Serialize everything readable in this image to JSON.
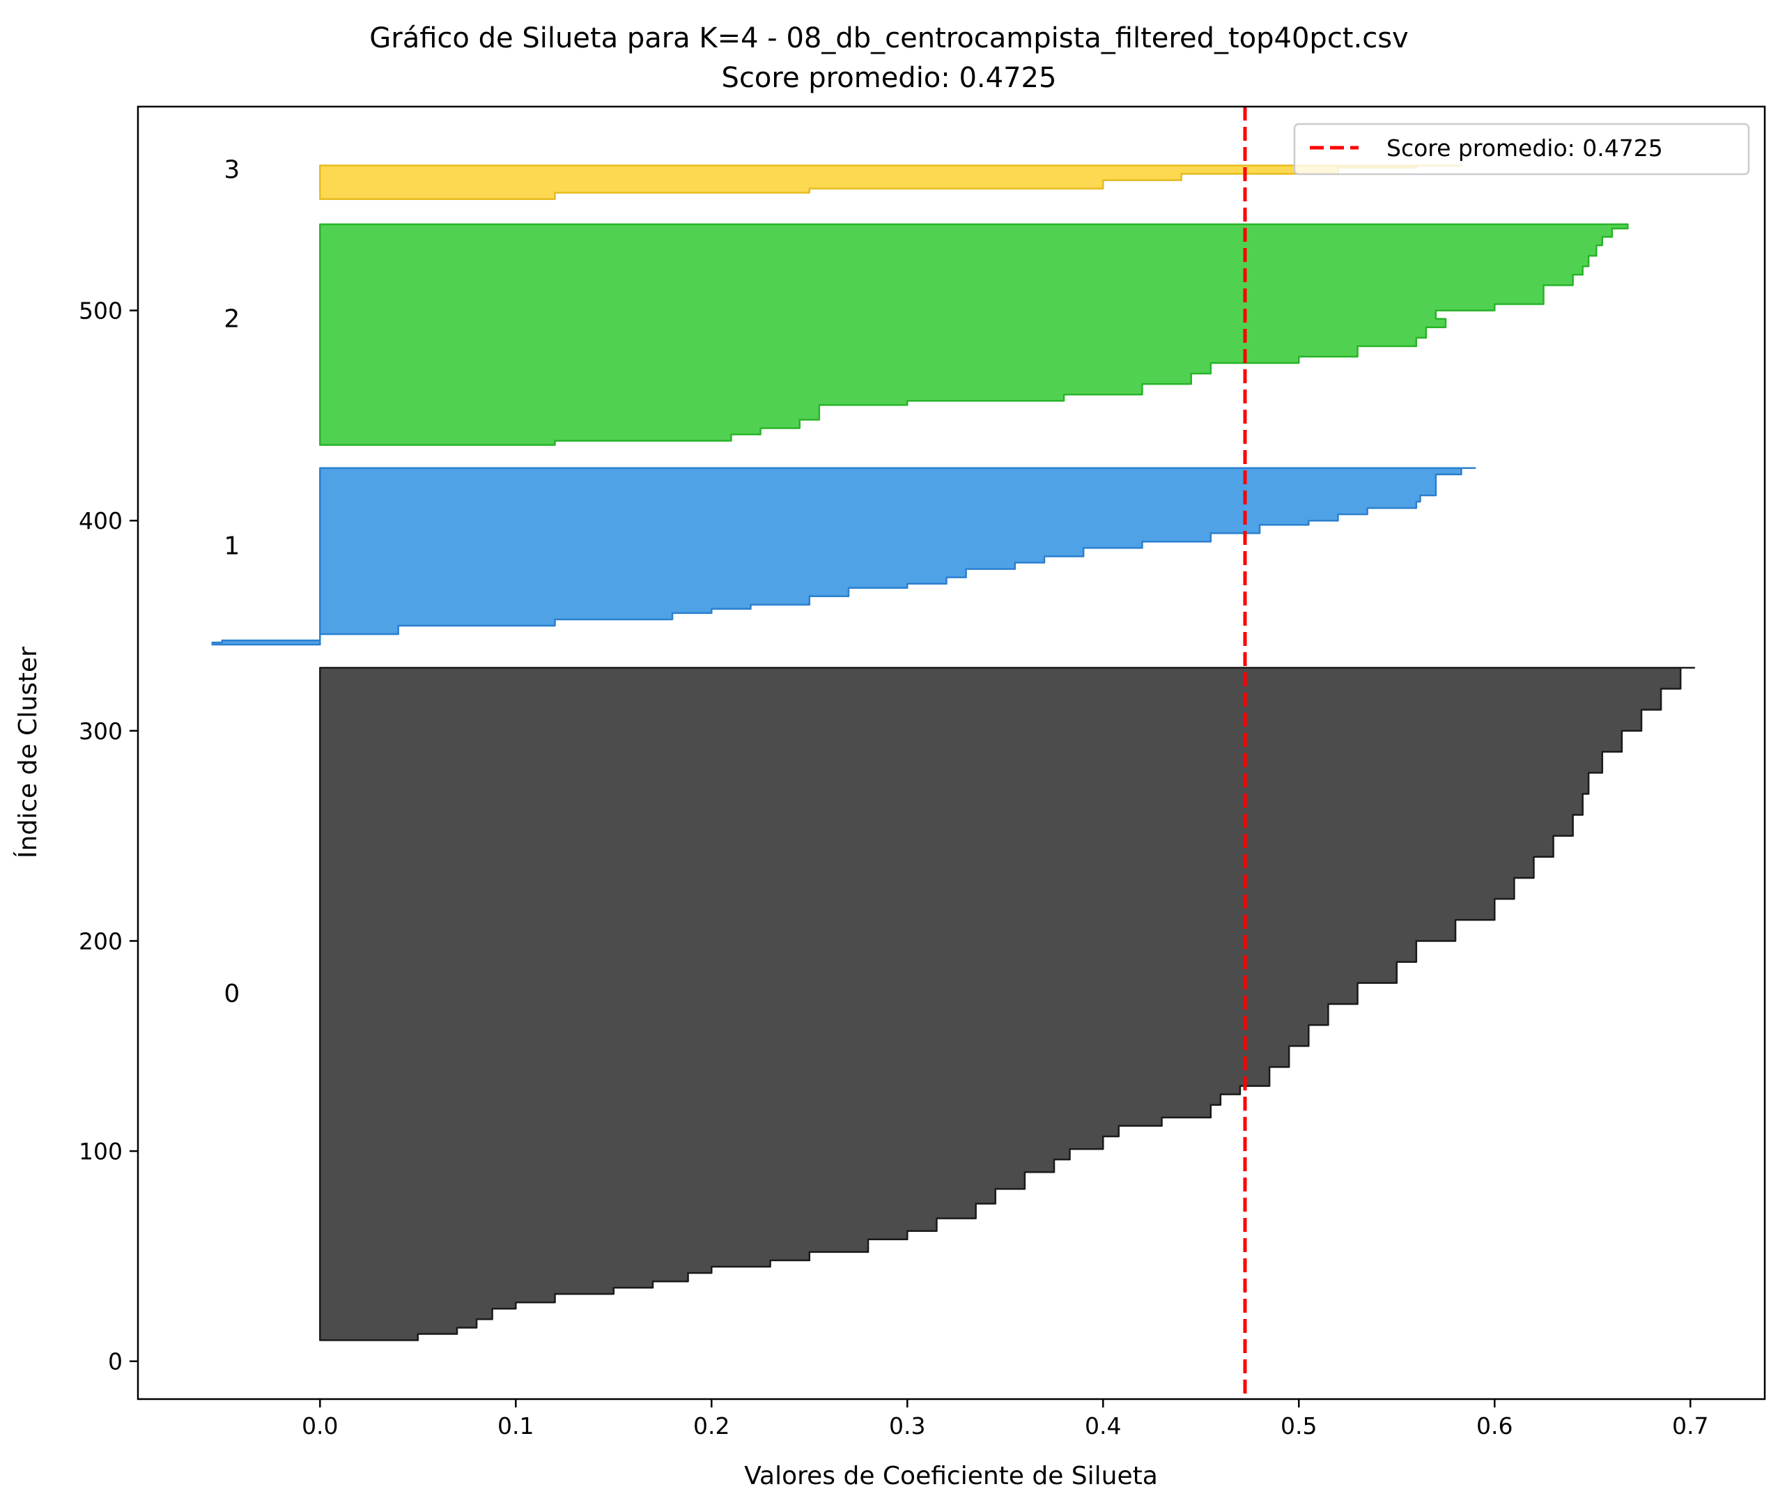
{
  "chart_data": {
    "type": "area",
    "title": "Gráfico de Silueta para K=4 - 08_db_centrocampista_filtered_top40pct.csv",
    "subtitle": "Score promedio: 0.4725",
    "xlabel": "Valores de Coeficiente de Silueta",
    "ylabel": "Índice de Cluster",
    "xlim": [
      -0.093,
      0.738
    ],
    "ylim": [
      -18,
      597
    ],
    "xticks": [
      "0.0",
      "0.1",
      "0.2",
      "0.3",
      "0.4",
      "0.5",
      "0.6",
      "0.7"
    ],
    "xtick_values": [
      0.0,
      0.1,
      0.2,
      0.3,
      0.4,
      0.5,
      0.6,
      0.7
    ],
    "yticks": [
      "0",
      "100",
      "200",
      "300",
      "400",
      "500"
    ],
    "ytick_values": [
      0,
      100,
      200,
      300,
      400,
      500
    ],
    "average_score": 0.4725,
    "average_line_color": "#ff0000",
    "legend": {
      "label": "Score promedio: 0.4725",
      "placement": "top-right"
    },
    "clusters": [
      {
        "label": "0",
        "label_y": 175,
        "color": "#4c4c4c",
        "edge": "#1a1a1a",
        "profile": [
          [
            10,
            0.0
          ],
          [
            10,
            0.05
          ],
          [
            13,
            0.07
          ],
          [
            16,
            0.08
          ],
          [
            20,
            0.088
          ],
          [
            25,
            0.1
          ],
          [
            28,
            0.12
          ],
          [
            32,
            0.15
          ],
          [
            35,
            0.17
          ],
          [
            38,
            0.188
          ],
          [
            42,
            0.2
          ],
          [
            45,
            0.23
          ],
          [
            48,
            0.25
          ],
          [
            52,
            0.28
          ],
          [
            58,
            0.3
          ],
          [
            62,
            0.315
          ],
          [
            68,
            0.335
          ],
          [
            75,
            0.345
          ],
          [
            82,
            0.36
          ],
          [
            90,
            0.375
          ],
          [
            96,
            0.383
          ],
          [
            101,
            0.4
          ],
          [
            107,
            0.408
          ],
          [
            112,
            0.43
          ],
          [
            116,
            0.455
          ],
          [
            122,
            0.46
          ],
          [
            127,
            0.47
          ],
          [
            131,
            0.485
          ],
          [
            140,
            0.495
          ],
          [
            150,
            0.505
          ],
          [
            160,
            0.515
          ],
          [
            170,
            0.53
          ],
          [
            180,
            0.55
          ],
          [
            190,
            0.56
          ],
          [
            200,
            0.58
          ],
          [
            210,
            0.6
          ],
          [
            220,
            0.61
          ],
          [
            230,
            0.62
          ],
          [
            240,
            0.63
          ],
          [
            250,
            0.64
          ],
          [
            260,
            0.645
          ],
          [
            270,
            0.648
          ],
          [
            280,
            0.655
          ],
          [
            290,
            0.665
          ],
          [
            300,
            0.675
          ],
          [
            310,
            0.685
          ],
          [
            320,
            0.695
          ],
          [
            330,
            0.702
          ]
        ]
      },
      {
        "label": "1",
        "label_y": 388,
        "color": "#4a9fe5",
        "edge": "#2a7fcf",
        "profile": [
          [
            341,
            -0.055
          ],
          [
            342,
            -0.05
          ],
          [
            343,
            0.0
          ],
          [
            346,
            0.04
          ],
          [
            350,
            0.12
          ],
          [
            353,
            0.18
          ],
          [
            356,
            0.2
          ],
          [
            358,
            0.22
          ],
          [
            360,
            0.25
          ],
          [
            364,
            0.27
          ],
          [
            368,
            0.3
          ],
          [
            370,
            0.32
          ],
          [
            373,
            0.33
          ],
          [
            377,
            0.355
          ],
          [
            380,
            0.37
          ],
          [
            383,
            0.39
          ],
          [
            387,
            0.42
          ],
          [
            390,
            0.455
          ],
          [
            394,
            0.48
          ],
          [
            398,
            0.505
          ],
          [
            400,
            0.52
          ],
          [
            403,
            0.535
          ],
          [
            406,
            0.56
          ],
          [
            409,
            0.562
          ],
          [
            412,
            0.57
          ],
          [
            418,
            0.57
          ],
          [
            422,
            0.583
          ],
          [
            425,
            0.59
          ]
        ]
      },
      {
        "label": "2",
        "label_y": 496,
        "color": "#4bcf4b",
        "edge": "#28b428",
        "profile": [
          [
            436,
            0.0
          ],
          [
            436,
            0.12
          ],
          [
            438,
            0.21
          ],
          [
            441,
            0.225
          ],
          [
            444,
            0.245
          ],
          [
            448,
            0.255
          ],
          [
            455,
            0.3
          ],
          [
            457,
            0.38
          ],
          [
            460,
            0.42
          ],
          [
            465,
            0.445
          ],
          [
            470,
            0.455
          ],
          [
            475,
            0.5
          ],
          [
            478,
            0.53
          ],
          [
            483,
            0.56
          ],
          [
            487,
            0.565
          ],
          [
            492,
            0.575
          ],
          [
            496,
            0.57
          ],
          [
            500,
            0.6
          ],
          [
            503,
            0.625
          ],
          [
            507,
            0.625
          ],
          [
            512,
            0.64
          ],
          [
            517,
            0.645
          ],
          [
            521,
            0.648
          ],
          [
            526,
            0.652
          ],
          [
            531,
            0.655
          ],
          [
            535,
            0.66
          ],
          [
            539,
            0.668
          ],
          [
            541,
            0.668
          ]
        ]
      },
      {
        "label": "3",
        "label_y": 567,
        "color": "#fcd84a",
        "edge": "#e6bb1f",
        "profile": [
          [
            553,
            0.0
          ],
          [
            553,
            0.12
          ],
          [
            556,
            0.25
          ],
          [
            558,
            0.4
          ],
          [
            562,
            0.44
          ],
          [
            565,
            0.52
          ],
          [
            568,
            0.56
          ],
          [
            569,
            0.583
          ]
        ]
      }
    ]
  }
}
